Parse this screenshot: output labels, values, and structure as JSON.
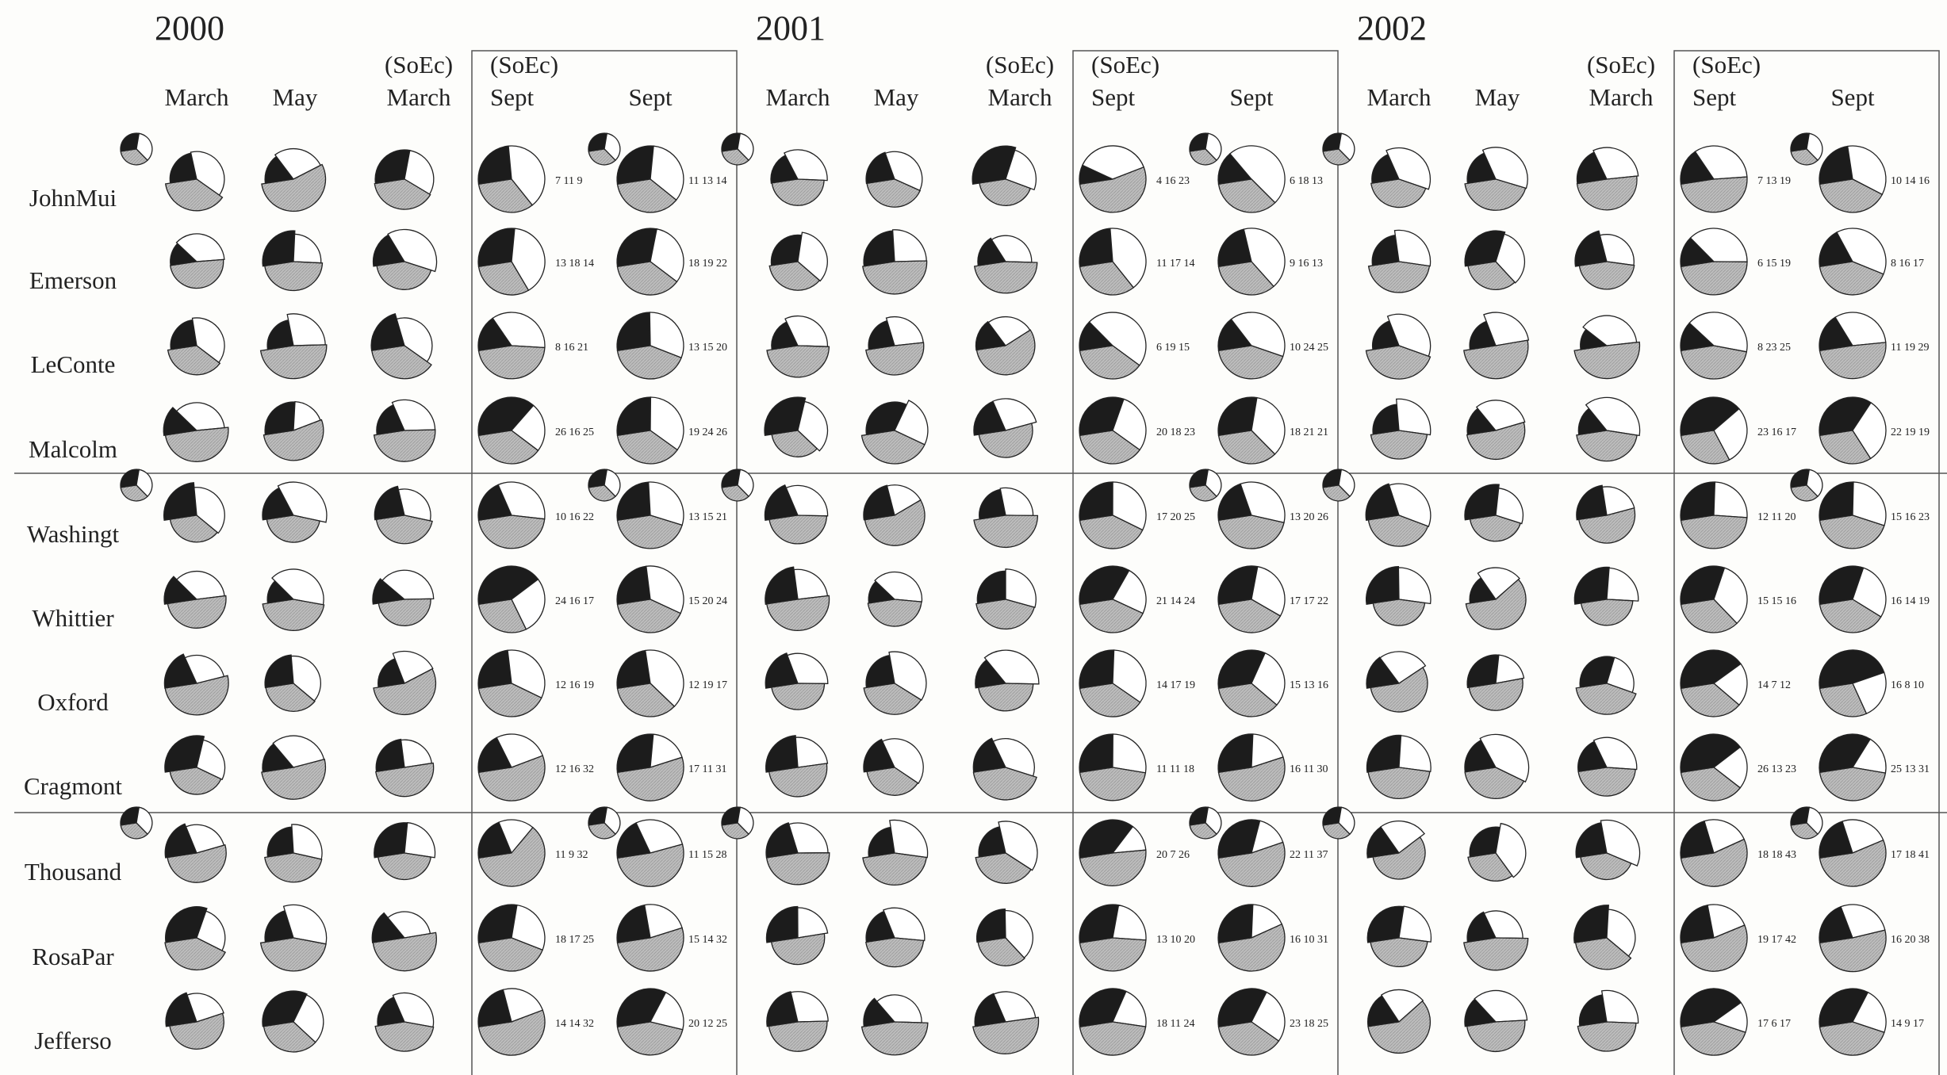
{
  "chart_data": {
    "type": "pie",
    "years": [
      "2000",
      "2001",
      "2002"
    ],
    "columns": [
      {
        "top": "",
        "bottom": "March"
      },
      {
        "top": "",
        "bottom": "May"
      },
      {
        "top": "(SoEc)",
        "bottom": "March"
      },
      {
        "top": "(SoEc)",
        "bottom": "Sept"
      },
      {
        "top": "",
        "bottom": "Sept"
      }
    ],
    "rows": [
      "JohnMui",
      "Emerson",
      "LeConte",
      "Malcolm",
      "Washingt",
      "Whittier",
      "Oxford",
      "Cragmont",
      "Thousand",
      "RosaPar",
      "Jefferso"
    ],
    "sept_labels": {
      "2000": [
        [
          "7 11 9",
          "11 13 14"
        ],
        [
          "13 18 14",
          "18 19 22"
        ],
        [
          "8 16 21",
          "13 15 20"
        ],
        [
          "26 16 25",
          "19 24 26"
        ],
        [
          "10 16 22",
          "13 15 21"
        ],
        [
          "24 16 17",
          "15 20 24"
        ],
        [
          "12 16 19",
          "12 19 17"
        ],
        [
          "12 16 32",
          "17 11 31"
        ],
        [
          "11 9 32",
          "11 15 28"
        ],
        [
          "18 17 25",
          "15 14 32"
        ],
        [
          "14 14 32",
          "20 12 25"
        ]
      ],
      "2001": [
        [
          "4 16 23",
          "6 18 13"
        ],
        [
          "11 17 14",
          "9 16 13"
        ],
        [
          "6 19 15",
          "10 24 25"
        ],
        [
          "20 18 23",
          "18 21 21"
        ],
        [
          "17 20 25",
          "13 20 26"
        ],
        [
          "21 14 24",
          "17 17 22"
        ],
        [
          "14 17 19",
          "15 13 16"
        ],
        [
          "11 11 18",
          "16 11 30"
        ],
        [
          "20 7 26",
          "22 11 37"
        ],
        [
          "13 10 20",
          "16 10 31"
        ],
        [
          "18 11 24",
          "23 18 25"
        ]
      ],
      "2002": [
        [
          "7 13 19",
          "10 14 16"
        ],
        [
          "6 15 19",
          "8 16 17"
        ],
        [
          "8 23 25",
          "11 19 29"
        ],
        [
          "23 16 17",
          "22 19 19"
        ],
        [
          "12 11 20",
          "15 16 23"
        ],
        [
          "15 15 16",
          "16 14 19"
        ],
        [
          "14 7 12",
          "16 8 10"
        ],
        [
          "26 13 23",
          "25 13 31"
        ],
        [
          "18 18 43",
          "17 18 41"
        ],
        [
          "19 17 42",
          "16 20 38"
        ],
        [
          "17 6 17",
          "14 9 17"
        ]
      ]
    },
    "series": [
      {
        "name": "",
        "color": "#1c1c1c"
      },
      {
        "name": "",
        "color": "#ffffff"
      },
      {
        "name": "",
        "color": "#bdbdbd"
      }
    ]
  }
}
